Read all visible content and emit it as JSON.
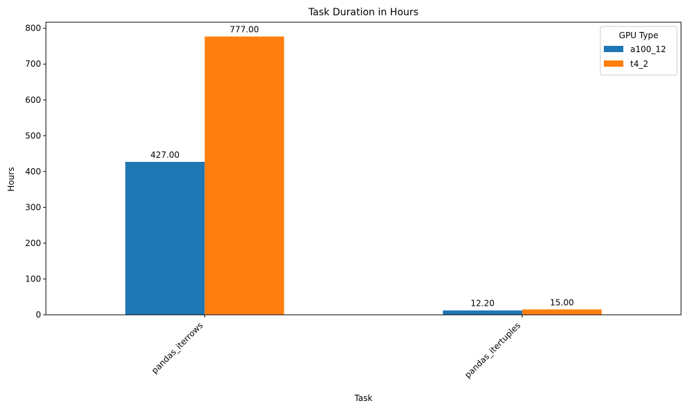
{
  "chart_data": {
    "type": "bar",
    "title": "Task Duration in Hours",
    "xlabel": "Task",
    "ylabel": "Hours",
    "categories": [
      "pandas_iterrows",
      "pandas_itertuples"
    ],
    "series": [
      {
        "name": "a100_12",
        "color": "#1f77b4",
        "values": [
          427.0,
          12.2
        ],
        "labels": [
          "427.00",
          "12.20"
        ]
      },
      {
        "name": "t4_2",
        "color": "#ff7f0e",
        "values": [
          777.0,
          15.0
        ],
        "labels": [
          "777.00",
          "15.00"
        ]
      }
    ],
    "ylim": [
      0,
      816.9
    ],
    "yticks": [
      0,
      100,
      200,
      300,
      400,
      500,
      600,
      700,
      800
    ],
    "ytick_labels": [
      "0",
      "100",
      "200",
      "300",
      "400",
      "500",
      "600",
      "700",
      "800"
    ],
    "legend": {
      "title": "GPU Type",
      "placement": "top-right"
    },
    "grid": false,
    "xtick_rotation": 45
  }
}
